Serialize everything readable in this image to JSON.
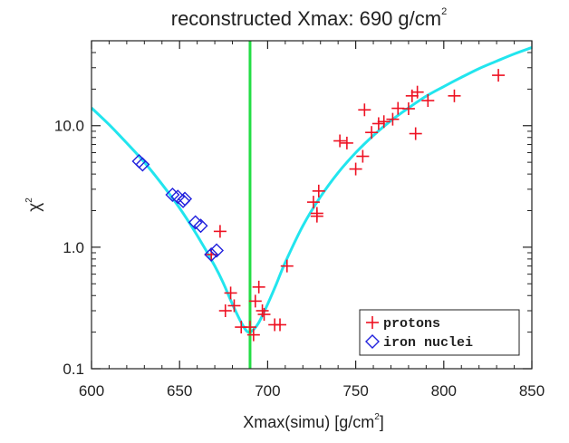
{
  "chart_data": {
    "type": "scatter",
    "title_main": "reconstructed Xmax: 690 g/cm",
    "title_sup": "2",
    "xlabel_main": "Xmax(simu) [g/cm",
    "xlabel_sup": "2",
    "xlabel_end": "]",
    "ylabel_main": "χ",
    "ylabel_sup": "2",
    "xlim": [
      600,
      850
    ],
    "ylim": [
      0.1,
      50
    ],
    "yscale": "log",
    "xticks": [
      600,
      650,
      700,
      750,
      800,
      850
    ],
    "xtick_labels": [
      "600",
      "650",
      "700",
      "750",
      "800",
      "850"
    ],
    "yticks": [
      0.1,
      1.0,
      10.0
    ],
    "ytick_labels": [
      "0.1",
      "1.0",
      "10.0"
    ],
    "legend_position": "bottom-right",
    "vertical_line": {
      "x": 690,
      "color": "#22dd44"
    },
    "fit_curve": {
      "color": "#22e5ee",
      "x": [
        600,
        610,
        620,
        630,
        640,
        650,
        660,
        670,
        675,
        680,
        685,
        688,
        690,
        692,
        695,
        700,
        705,
        710,
        720,
        730,
        740,
        750,
        760,
        770,
        780,
        790,
        800,
        810,
        820,
        830,
        840,
        850
      ],
      "y": [
        14.0,
        10.2,
        7.2,
        5.0,
        3.3,
        2.1,
        1.25,
        0.7,
        0.5,
        0.34,
        0.24,
        0.205,
        0.2,
        0.21,
        0.24,
        0.34,
        0.5,
        0.75,
        1.5,
        2.6,
        4.1,
        6.0,
        8.3,
        11.0,
        14.0,
        17.5,
        21.0,
        25.0,
        29.5,
        34.0,
        39.0,
        44.0
      ]
    },
    "series": [
      {
        "name": "protons",
        "marker": "plus",
        "color": "#ee1122",
        "points": [
          [
            668,
            0.87
          ],
          [
            673,
            1.35
          ],
          [
            676,
            0.3
          ],
          [
            679,
            0.42
          ],
          [
            681,
            0.33
          ],
          [
            685,
            0.22
          ],
          [
            690,
            0.22
          ],
          [
            692,
            0.19
          ],
          [
            693,
            0.36
          ],
          [
            695,
            0.47
          ],
          [
            697,
            0.3
          ],
          [
            698,
            0.28
          ],
          [
            704,
            0.23
          ],
          [
            707,
            0.23
          ],
          [
            711,
            0.7
          ],
          [
            726,
            2.35
          ],
          [
            728,
            1.8
          ],
          [
            728,
            1.9
          ],
          [
            729,
            2.9
          ],
          [
            741,
            7.5
          ],
          [
            745,
            7.2
          ],
          [
            750,
            4.4
          ],
          [
            754,
            5.6
          ],
          [
            755,
            13.5
          ],
          [
            759,
            8.8
          ],
          [
            763,
            10.4
          ],
          [
            766,
            10.8
          ],
          [
            771,
            11.3
          ],
          [
            774,
            13.9
          ],
          [
            780,
            13.8
          ],
          [
            782,
            17.6
          ],
          [
            784,
            8.6
          ],
          [
            785,
            18.9
          ],
          [
            791,
            16.1
          ],
          [
            806,
            17.6
          ],
          [
            831,
            26.0
          ]
        ]
      },
      {
        "name": "iron nuclei",
        "marker": "diamond",
        "color": "#2222dd",
        "points": [
          [
            627,
            5.1
          ],
          [
            629,
            4.8
          ],
          [
            646,
            2.7
          ],
          [
            649,
            2.6
          ],
          [
            652,
            2.4
          ],
          [
            653,
            2.5
          ],
          [
            659,
            1.6
          ],
          [
            662,
            1.5
          ],
          [
            668,
            0.87
          ],
          [
            671,
            0.94
          ]
        ]
      }
    ]
  }
}
